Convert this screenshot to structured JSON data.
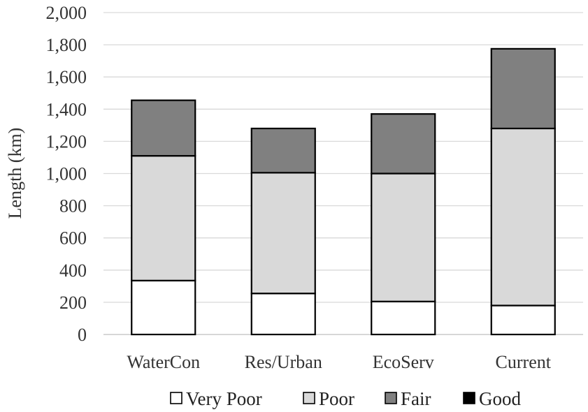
{
  "chart_data": {
    "type": "bar",
    "stacked": true,
    "title": "",
    "xlabel": "",
    "ylabel": "Length (km)",
    "ylim": [
      0,
      2000
    ],
    "yticks": [
      0,
      200,
      400,
      600,
      800,
      1000,
      1200,
      1400,
      1600,
      1800,
      2000
    ],
    "ytick_labels": [
      "0",
      "200",
      "400",
      "600",
      "800",
      "1,000",
      "1,200",
      "1,400",
      "1,600",
      "1,800",
      "2,000"
    ],
    "grid": "horizontal",
    "legend_position": "bottom",
    "categories": [
      "WaterCon",
      "Res/Urban",
      "EcoServ",
      "Current"
    ],
    "series": [
      {
        "name": "Very Poor",
        "color": "#ffffff",
        "values": [
          335,
          255,
          205,
          180
        ]
      },
      {
        "name": "Poor",
        "color": "#d9d9d9",
        "values": [
          775,
          750,
          795,
          1100
        ]
      },
      {
        "name": "Fair",
        "color": "#808080",
        "values": [
          345,
          275,
          370,
          495
        ]
      },
      {
        "name": "Good",
        "color": "#000000",
        "values": [
          0,
          0,
          0,
          0
        ]
      }
    ]
  }
}
